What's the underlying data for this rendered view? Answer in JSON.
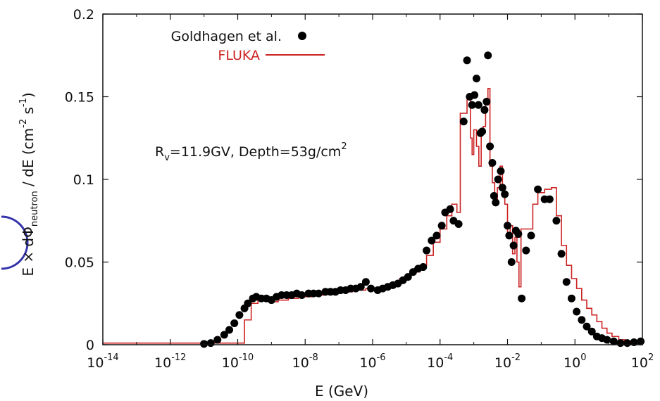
{
  "chart_data": {
    "type": "scatter",
    "xscale": "log",
    "xlim": [
      1e-14,
      100
    ],
    "ylim": [
      0,
      0.2
    ],
    "xticks": [
      {
        "exp": "-14"
      },
      {
        "exp": "-12"
      },
      {
        "exp": "-10"
      },
      {
        "exp": "-8"
      },
      {
        "exp": "-6"
      },
      {
        "exp": "-4"
      },
      {
        "exp": "-2"
      },
      {
        "exp": "0"
      },
      {
        "exp": "2"
      }
    ],
    "xtick_base": "10",
    "yticks": [
      "0",
      "0.05",
      "0.1",
      "0.15",
      "0.2"
    ],
    "ytick_values": [
      0,
      0.05,
      0.1,
      0.15,
      0.2
    ],
    "xlabel": "E    (GeV)",
    "ylabel": {
      "prefix": "E × dΦ",
      "sub": "neutron",
      "mid": " / dE     (cm",
      "sup1": "-2",
      "mid2": " s",
      "sup2": "-1",
      "suffix": ")"
    },
    "annotation": {
      "r": "R",
      "r_sub": "v",
      "text": "=11.9GV, Depth=53g/cm",
      "sup": "2"
    },
    "colors": {
      "fluka": "#cc2222",
      "goldhagen": "#000000",
      "frame": "#111111",
      "partial_circle": "#3333aa"
    },
    "series": [
      {
        "name": "Goldhagen et al.",
        "kind": "points",
        "points": [
          [
            -11.0,
            0.0005
          ],
          [
            -10.8,
            0.001
          ],
          [
            -10.6,
            0.003
          ],
          [
            -10.4,
            0.006
          ],
          [
            -10.25,
            0.009
          ],
          [
            -10.1,
            0.013
          ],
          [
            -9.95,
            0.018
          ],
          [
            -9.8,
            0.022
          ],
          [
            -9.7,
            0.025
          ],
          [
            -9.55,
            0.028
          ],
          [
            -9.45,
            0.029
          ],
          [
            -9.3,
            0.028
          ],
          [
            -9.15,
            0.028
          ],
          [
            -9.0,
            0.027
          ],
          [
            -8.85,
            0.029
          ],
          [
            -8.7,
            0.03
          ],
          [
            -8.55,
            0.03
          ],
          [
            -8.4,
            0.03
          ],
          [
            -8.25,
            0.031
          ],
          [
            -8.1,
            0.03
          ],
          [
            -7.9,
            0.031
          ],
          [
            -7.75,
            0.031
          ],
          [
            -7.6,
            0.031
          ],
          [
            -7.4,
            0.032
          ],
          [
            -7.25,
            0.032
          ],
          [
            -7.1,
            0.032
          ],
          [
            -6.95,
            0.033
          ],
          [
            -6.8,
            0.033
          ],
          [
            -6.65,
            0.034
          ],
          [
            -6.5,
            0.034
          ],
          [
            -6.35,
            0.035
          ],
          [
            -6.2,
            0.038
          ],
          [
            -6.05,
            0.034
          ],
          [
            -5.85,
            0.033
          ],
          [
            -5.7,
            0.034
          ],
          [
            -5.55,
            0.035
          ],
          [
            -5.4,
            0.036
          ],
          [
            -5.25,
            0.037
          ],
          [
            -5.1,
            0.039
          ],
          [
            -4.95,
            0.041
          ],
          [
            -4.8,
            0.044
          ],
          [
            -4.65,
            0.046
          ],
          [
            -4.5,
            0.047
          ],
          [
            -4.4,
            0.057
          ],
          [
            -4.25,
            0.063
          ],
          [
            -4.1,
            0.066
          ],
          [
            -3.95,
            0.072
          ],
          [
            -3.85,
            0.08
          ],
          [
            -3.7,
            0.082
          ],
          [
            -3.6,
            0.075
          ],
          [
            -3.45,
            0.073
          ],
          [
            -3.3,
            0.135
          ],
          [
            -3.2,
            0.172
          ],
          [
            -3.12,
            0.15
          ],
          [
            -3.05,
            0.145
          ],
          [
            -2.98,
            0.151
          ],
          [
            -2.92,
            0.161
          ],
          [
            -2.86,
            0.145
          ],
          [
            -2.8,
            0.128
          ],
          [
            -2.75,
            0.129
          ],
          [
            -2.68,
            0.142
          ],
          [
            -2.62,
            0.147
          ],
          [
            -2.58,
            0.175
          ],
          [
            -2.52,
            0.12
          ],
          [
            -2.45,
            0.11
          ],
          [
            -2.4,
            0.09
          ],
          [
            -2.35,
            0.086
          ],
          [
            -2.28,
            0.1
          ],
          [
            -2.2,
            0.105
          ],
          [
            -2.15,
            0.095
          ],
          [
            -2.08,
            0.091
          ],
          [
            -2.0,
            0.072
          ],
          [
            -1.95,
            0.066
          ],
          [
            -1.88,
            0.05
          ],
          [
            -1.82,
            0.06
          ],
          [
            -1.75,
            0.069
          ],
          [
            -1.68,
            0.067
          ],
          [
            -1.58,
            0.028
          ],
          [
            -1.45,
            0.057
          ],
          [
            -1.3,
            0.066
          ],
          [
            -1.1,
            0.094
          ],
          [
            -0.9,
            0.088
          ],
          [
            -0.75,
            0.088
          ],
          [
            -0.55,
            0.075
          ],
          [
            -0.4,
            0.055
          ],
          [
            -0.25,
            0.038
          ],
          [
            -0.1,
            0.028
          ],
          [
            0.05,
            0.02
          ],
          [
            0.2,
            0.015
          ],
          [
            0.35,
            0.011
          ],
          [
            0.5,
            0.008
          ],
          [
            0.65,
            0.005
          ],
          [
            0.8,
            0.004
          ],
          [
            0.95,
            0.003
          ],
          [
            1.15,
            0.002
          ],
          [
            1.35,
            0.001
          ],
          [
            1.55,
            0.001
          ],
          [
            1.75,
            0.0015
          ],
          [
            1.95,
            0.002
          ]
        ]
      },
      {
        "name": "FLUKA",
        "kind": "step",
        "points": [
          [
            -14.0,
            0.001
          ],
          [
            -9.8,
            0.001
          ],
          [
            -9.8,
            0.015
          ],
          [
            -9.6,
            0.025
          ],
          [
            -9.4,
            0.029
          ],
          [
            -9.2,
            0.028
          ],
          [
            -9.0,
            0.026
          ],
          [
            -8.8,
            0.027
          ],
          [
            -8.5,
            0.028
          ],
          [
            -8.2,
            0.029
          ],
          [
            -7.8,
            0.03
          ],
          [
            -7.4,
            0.031
          ],
          [
            -7.0,
            0.032
          ],
          [
            -6.6,
            0.033
          ],
          [
            -6.2,
            0.034
          ],
          [
            -5.8,
            0.035
          ],
          [
            -5.5,
            0.037
          ],
          [
            -5.2,
            0.04
          ],
          [
            -4.9,
            0.044
          ],
          [
            -4.6,
            0.048
          ],
          [
            -4.4,
            0.054
          ],
          [
            -4.2,
            0.062
          ],
          [
            -4.0,
            0.07
          ],
          [
            -3.8,
            0.078
          ],
          [
            -3.65,
            0.085
          ],
          [
            -3.5,
            0.08
          ],
          [
            -3.4,
            0.14
          ],
          [
            -3.3,
            0.14
          ],
          [
            -3.2,
            0.15
          ],
          [
            -3.1,
            0.125
          ],
          [
            -3.05,
            0.115
          ],
          [
            -3.0,
            0.13
          ],
          [
            -2.92,
            0.12
          ],
          [
            -2.85,
            0.108
          ],
          [
            -2.78,
            0.13
          ],
          [
            -2.72,
            0.132
          ],
          [
            -2.65,
            0.145
          ],
          [
            -2.58,
            0.155
          ],
          [
            -2.52,
            0.108
          ],
          [
            -2.45,
            0.098
          ],
          [
            -2.38,
            0.088
          ],
          [
            -2.3,
            0.095
          ],
          [
            -2.22,
            0.108
          ],
          [
            -2.15,
            0.095
          ],
          [
            -2.08,
            0.085
          ],
          [
            -2.0,
            0.068
          ],
          [
            -1.92,
            0.072
          ],
          [
            -1.85,
            0.055
          ],
          [
            -1.78,
            0.065
          ],
          [
            -1.72,
            0.05
          ],
          [
            -1.66,
            0.035
          ],
          [
            -1.6,
            0.07
          ],
          [
            -1.4,
            0.07
          ],
          [
            -1.25,
            0.085
          ],
          [
            -1.1,
            0.092
          ],
          [
            -0.9,
            0.094
          ],
          [
            -0.7,
            0.095
          ],
          [
            -0.55,
            0.078
          ],
          [
            -0.4,
            0.06
          ],
          [
            -0.25,
            0.048
          ],
          [
            -0.1,
            0.04
          ],
          [
            0.05,
            0.034
          ],
          [
            0.2,
            0.027
          ],
          [
            0.35,
            0.022
          ],
          [
            0.5,
            0.018
          ],
          [
            0.65,
            0.014
          ],
          [
            0.8,
            0.01
          ],
          [
            0.95,
            0.007
          ],
          [
            1.1,
            0.005
          ],
          [
            1.3,
            0.003
          ],
          [
            1.5,
            0.002
          ],
          [
            1.7,
            0.001
          ],
          [
            2.0,
            0.001
          ]
        ]
      }
    ]
  }
}
